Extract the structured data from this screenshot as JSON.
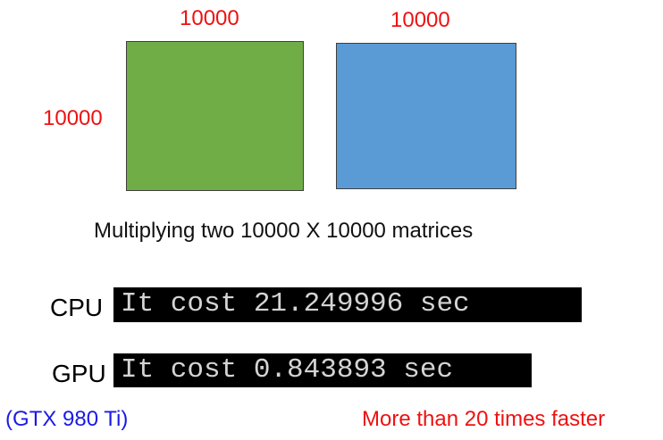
{
  "matrix_a": {
    "width_label": "10000",
    "height_label": "10000",
    "color": "#70ad47"
  },
  "matrix_b": {
    "width_label": "10000",
    "color": "#5b9bd5"
  },
  "caption": "Multiplying two 10000 X 10000 matrices",
  "cpu": {
    "label": "CPU",
    "output": "It cost 21.249996 sec"
  },
  "gpu": {
    "label": "GPU",
    "output": "It cost 0.843893 sec",
    "model": "(GTX 980 Ti)"
  },
  "speedup_note": "More than 20 times faster",
  "colors": {
    "dimension_label": "#ee1111",
    "gpu_model": "#1a1ae6",
    "terminal_background": "#000000",
    "terminal_text": "#d4d4d4"
  }
}
